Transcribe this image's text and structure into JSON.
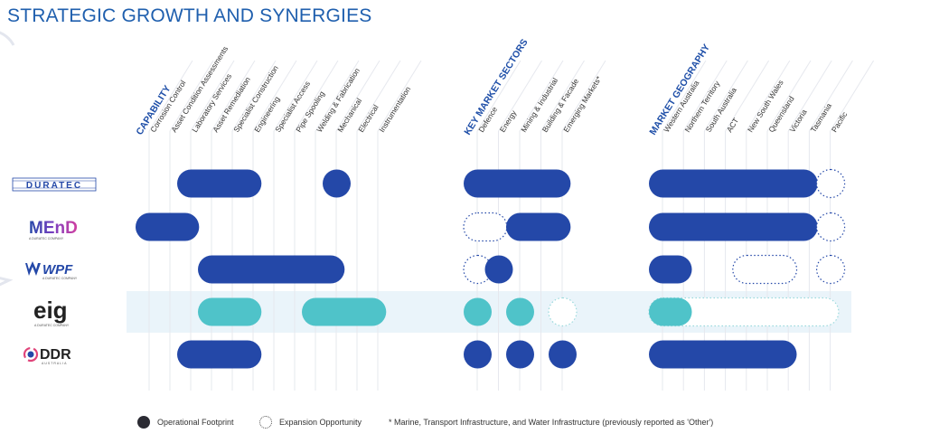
{
  "title": "STRATEGIC GROWTH AND SYNERGIES",
  "colors": {
    "title": "#1f5fae",
    "header": "#1f4fa8",
    "operational": "#2448a8",
    "highlight": "#4fc3c9",
    "expansion_outline": "#2448a8",
    "highlight_band": "#eaf4fa"
  },
  "groups": [
    {
      "header": "CAPABILITY",
      "columns": [
        "Corrosion Control",
        "Asset Condition Assessments",
        "Laboratory Services",
        "Asset Remediation",
        "Specialist Construction",
        "Engineering",
        "Specialist Access",
        "Pipe Spooling",
        "Welding & Fabrication",
        "Mechanical",
        "Electrical",
        "Instrumentation"
      ]
    },
    {
      "header": "KEY MARKET SECTORS",
      "columns": [
        "Defence",
        "Energy",
        "Mining & Industrial",
        "Building & Facade",
        "Emerging Markets*"
      ]
    },
    {
      "header": "MARKET GEOGRAPHY",
      "columns": [
        "Western Australia",
        "Northern Territory",
        "South Australia",
        "ACT",
        "New South Wales",
        "Queensland",
        "Victoria",
        "Tasmania",
        "Pacific"
      ]
    }
  ],
  "companies": [
    {
      "name": "DURATEC",
      "subtitle": "",
      "highlight": false,
      "style": "operational",
      "bars": [
        {
          "group": 0,
          "from": 2,
          "to": 5,
          "type": "operational"
        },
        {
          "group": 0,
          "from": 9,
          "to": 9,
          "type": "operational"
        },
        {
          "group": 1,
          "from": 0,
          "to": 4,
          "type": "operational"
        },
        {
          "group": 2,
          "from": 0,
          "to": 7,
          "type": "operational"
        },
        {
          "group": 2,
          "from": 8,
          "to": 8,
          "type": "expansion"
        }
      ]
    },
    {
      "name": "MEnD",
      "subtitle": "A DURATEC COMPANY",
      "highlight": false,
      "style": "operational",
      "bars": [
        {
          "group": 0,
          "from": 0,
          "to": 2,
          "type": "operational"
        },
        {
          "group": 1,
          "from": 0,
          "to": 1,
          "type": "expansion"
        },
        {
          "group": 1,
          "from": 2,
          "to": 4,
          "type": "operational"
        },
        {
          "group": 2,
          "from": 0,
          "to": 7,
          "type": "operational"
        },
        {
          "group": 2,
          "from": 8,
          "to": 8,
          "type": "expansion"
        }
      ]
    },
    {
      "name": "WPF",
      "subtitle": "A DURATEC COMPANY",
      "highlight": false,
      "style": "operational",
      "bars": [
        {
          "group": 0,
          "from": 3,
          "to": 9,
          "type": "operational"
        },
        {
          "group": 1,
          "from": 0,
          "to": 0,
          "type": "expansion"
        },
        {
          "group": 1,
          "from": 1,
          "to": 1,
          "type": "operational"
        },
        {
          "group": 2,
          "from": 0,
          "to": 1,
          "type": "operational"
        },
        {
          "group": 2,
          "from": 4,
          "to": 6,
          "type": "expansion"
        },
        {
          "group": 2,
          "from": 8,
          "to": 8,
          "type": "expansion"
        }
      ]
    },
    {
      "name": "eig",
      "subtitle": "A DURATEC COMPANY",
      "highlight": true,
      "style": "highlight",
      "bars": [
        {
          "group": 0,
          "from": 3,
          "to": 5,
          "type": "operational"
        },
        {
          "group": 0,
          "from": 8,
          "to": 11,
          "type": "operational"
        },
        {
          "group": 1,
          "from": 0,
          "to": 0,
          "type": "operational"
        },
        {
          "group": 1,
          "from": 2,
          "to": 2,
          "type": "operational"
        },
        {
          "group": 1,
          "from": 4,
          "to": 4,
          "type": "expansion"
        },
        {
          "group": 2,
          "from": 0,
          "to": 8,
          "type": "expansion"
        },
        {
          "group": 2,
          "from": 0,
          "to": 1,
          "type": "operational"
        }
      ]
    },
    {
      "name": "DDR",
      "subtitle": "AUSTRALIA",
      "highlight": false,
      "style": "operational",
      "bars": [
        {
          "group": 0,
          "from": 2,
          "to": 5,
          "type": "operational"
        },
        {
          "group": 1,
          "from": 0,
          "to": 0,
          "type": "operational"
        },
        {
          "group": 1,
          "from": 2,
          "to": 2,
          "type": "operational"
        },
        {
          "group": 1,
          "from": 4,
          "to": 4,
          "type": "operational"
        },
        {
          "group": 2,
          "from": 0,
          "to": 6,
          "type": "operational"
        }
      ]
    }
  ],
  "legend": {
    "operational": "Operational Footprint",
    "expansion": "Expansion Opportunity",
    "footnote": "* Marine, Transport Infrastructure, and Water Infrastructure (previously reported as 'Other')"
  }
}
